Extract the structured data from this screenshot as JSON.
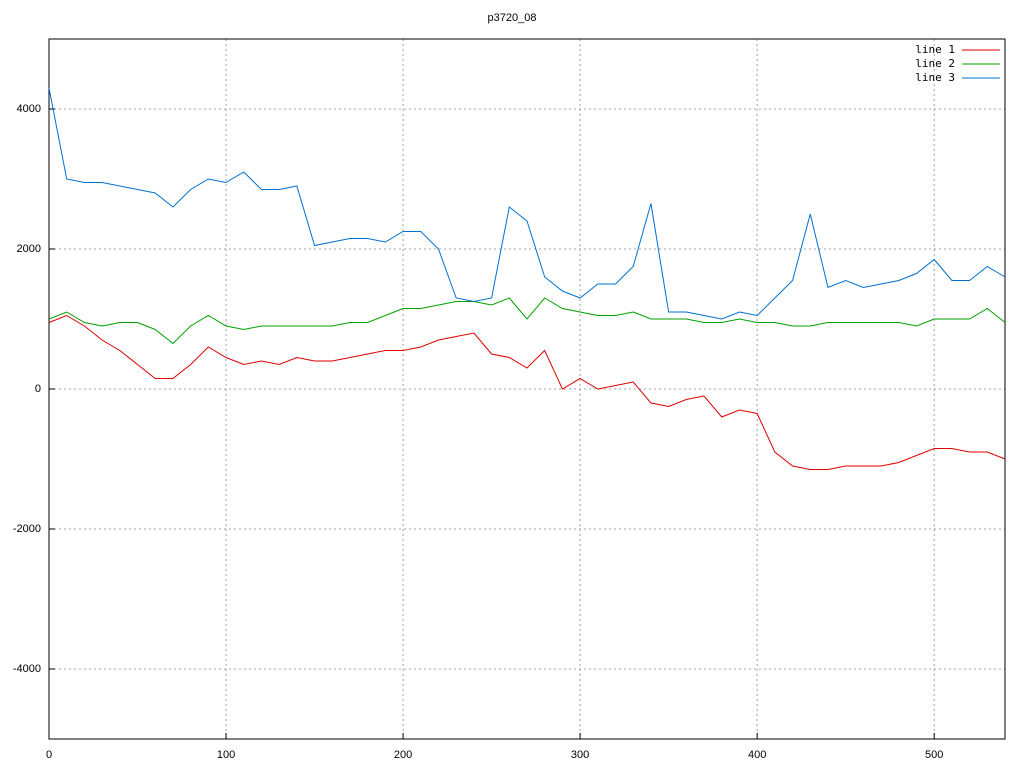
{
  "chart_data": {
    "type": "line",
    "title": "p3720_08",
    "x": [
      0,
      10,
      20,
      30,
      40,
      50,
      60,
      70,
      80,
      90,
      100,
      110,
      120,
      130,
      140,
      150,
      160,
      170,
      180,
      190,
      200,
      210,
      220,
      230,
      240,
      250,
      260,
      270,
      280,
      290,
      300,
      310,
      320,
      330,
      340,
      350,
      360,
      370,
      380,
      390,
      400,
      410,
      420,
      430,
      440,
      450,
      460,
      470,
      480,
      490,
      500,
      510,
      520,
      530,
      540
    ],
    "series": [
      {
        "name": "line 1",
        "color": "#e00000",
        "values": [
          950,
          1050,
          900,
          700,
          550,
          350,
          150,
          150,
          350,
          600,
          450,
          350,
          400,
          350,
          450,
          400,
          400,
          450,
          500,
          550,
          550,
          600,
          700,
          750,
          800,
          500,
          450,
          300,
          550,
          0,
          150,
          0,
          50,
          100,
          -200,
          -250,
          -150,
          -100,
          -400,
          -300,
          -350,
          -900,
          -1100,
          -1150,
          -1150,
          -1100,
          -1100,
          -1100,
          -1050,
          -950,
          -850,
          -850,
          -900,
          -900,
          -1000
        ]
      },
      {
        "name": "line 2",
        "color": "#00a000",
        "values": [
          1000,
          1100,
          950,
          900,
          950,
          950,
          850,
          650,
          900,
          1050,
          900,
          850,
          900,
          900,
          900,
          900,
          900,
          950,
          950,
          1050,
          1150,
          1150,
          1200,
          1250,
          1250,
          1200,
          1300,
          1000,
          1300,
          1150,
          1100,
          1050,
          1050,
          1100,
          1000,
          1000,
          1000,
          950,
          950,
          1000,
          950,
          950,
          900,
          900,
          950,
          950,
          950,
          950,
          950,
          900,
          1000,
          1000,
          1000,
          1150,
          950
        ]
      },
      {
        "name": "line 3",
        "color": "#0070d0",
        "values": [
          4300,
          3000,
          2950,
          2950,
          2900,
          2850,
          2800,
          2600,
          2850,
          3000,
          2950,
          3100,
          2850,
          2850,
          2900,
          2050,
          2100,
          2150,
          2150,
          2100,
          2250,
          2250,
          2000,
          1300,
          1250,
          1300,
          2600,
          2400,
          1600,
          1400,
          1300,
          1500,
          1500,
          1750,
          2650,
          1100,
          1100,
          1050,
          1000,
          1100,
          1050,
          1300,
          1550,
          2500,
          1450,
          1550,
          1450,
          1500,
          1550,
          1650,
          1850,
          1550,
          1550,
          1750,
          1600
        ]
      }
    ],
    "xlim": [
      0,
      540
    ],
    "xticks": [
      0,
      100,
      200,
      300,
      400,
      500
    ],
    "ylim": [
      -5000,
      5000
    ],
    "yticks": [
      -4000,
      -2000,
      0,
      2000,
      4000
    ],
    "grid": true,
    "legend": "top-right"
  }
}
